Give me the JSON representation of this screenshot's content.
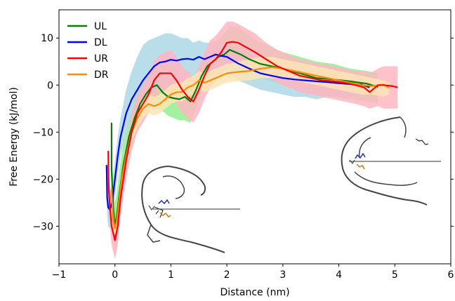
{
  "chart_data": {
    "type": "line",
    "title": "",
    "xlabel": "Distance (nm)",
    "ylabel": "Free Energy (kJ/mol)",
    "xlim": [
      -1,
      6
    ],
    "ylim": [
      -38,
      16
    ],
    "xticks": [
      "−1",
      "0",
      "1",
      "2",
      "3",
      "4",
      "5",
      "6"
    ],
    "yticks": [
      "−30",
      "−20",
      "−10",
      "0",
      "10"
    ],
    "grid": false,
    "legend_position": "top-left",
    "series": [
      {
        "name": "UL",
        "color": "#008000",
        "band_color": "#90ee90",
        "x": [
          -0.06,
          -0.06,
          -0.03,
          0.0,
          0.03,
          0.08,
          0.15,
          0.25,
          0.35,
          0.45,
          0.55,
          0.65,
          0.75,
          0.85,
          0.95,
          1.05,
          1.15,
          1.25,
          1.35,
          1.45,
          1.55,
          1.65,
          1.75,
          1.85,
          1.95,
          2.05,
          2.15,
          2.25,
          2.4,
          2.6,
          2.8,
          3.0,
          3.3,
          3.6,
          3.9,
          4.2,
          4.5,
          4.7
        ],
        "y": [
          -8,
          -18,
          -26,
          -30,
          -28,
          -23,
          -17,
          -11,
          -7,
          -4,
          -2,
          -0.5,
          0,
          -1.5,
          -2.5,
          -2.8,
          -3,
          -2.5,
          -3.5,
          -1,
          2,
          4,
          5,
          6,
          6.5,
          7.5,
          7,
          6.5,
          5.5,
          4.5,
          4,
          3.5,
          2.5,
          1.5,
          1.2,
          0.8,
          0.3,
          -0.4
        ],
        "band_upper": [
          -6,
          -14,
          -20,
          -25,
          -23,
          -18,
          -12,
          -7,
          -3,
          0,
          2,
          3,
          4,
          2,
          1,
          0.5,
          0,
          0,
          0,
          2,
          5,
          7,
          8.5,
          10,
          11,
          12.5,
          12.5,
          12,
          10.5,
          9,
          8,
          7,
          6,
          5,
          4.5,
          3.5,
          3,
          2.5
        ],
        "band_lower": [
          -12,
          -24,
          -31,
          -36,
          -34,
          -28,
          -21,
          -15,
          -11,
          -8,
          -6,
          -4,
          -5,
          -5.5,
          -6.5,
          -7,
          -7.5,
          -7.5,
          -8,
          -5,
          -1.5,
          1,
          2,
          3,
          3.5,
          4,
          3.5,
          3,
          2.5,
          1.5,
          0.8,
          0,
          -1,
          -2,
          -2.5,
          -3,
          -3.5,
          -4
        ]
      },
      {
        "name": "DL",
        "color": "#0000ff",
        "band_color": "#add8e6",
        "x": [
          -0.15,
          -0.14,
          -0.12,
          -0.09,
          -0.05,
          0.0,
          0.05,
          0.1,
          0.2,
          0.3,
          0.4,
          0.5,
          0.6,
          0.7,
          0.8,
          0.9,
          1.0,
          1.1,
          1.2,
          1.3,
          1.4,
          1.5,
          1.6,
          1.7,
          1.8,
          1.9,
          2.0,
          2.1,
          2.2,
          2.4,
          2.6,
          2.8,
          3.0,
          3.2,
          3.4,
          3.6,
          3.8,
          4.0,
          4.2,
          4.4,
          4.55
        ],
        "y": [
          -17,
          -24,
          -26,
          -26.5,
          -25,
          -20,
          -15,
          -11,
          -6,
          -3,
          -1,
          1,
          2.5,
          4,
          4.8,
          5,
          5.4,
          5.2,
          5.5,
          5.6,
          5.4,
          6,
          5.5,
          6,
          6.5,
          6.2,
          6,
          5.3,
          4.6,
          3.5,
          2.5,
          2,
          1.5,
          1.2,
          1,
          0.8,
          0.6,
          0.4,
          0.2,
          0.1,
          -0.5
        ],
        "band_upper": [
          -14,
          -20,
          -22,
          -23,
          -21,
          -16,
          -11,
          -7,
          -1,
          3,
          6,
          8.5,
          9.5,
          10,
          10.5,
          11,
          11,
          10.5,
          10,
          10,
          9,
          9.5,
          9,
          9,
          9.5,
          9.5,
          9,
          8.5,
          8,
          7,
          6,
          5.5,
          5,
          4.5,
          4,
          3.5,
          3,
          2.5,
          2,
          1.5,
          0.5
        ],
        "band_lower": [
          -20,
          -28,
          -30,
          -30.5,
          -29,
          -24,
          -19,
          -15,
          -10,
          -7,
          -5,
          -3,
          -2,
          -1,
          -0.5,
          -0.5,
          0,
          0,
          0.5,
          1,
          1,
          2,
          2,
          2.5,
          3,
          3,
          3,
          2,
          1,
          0,
          -1,
          -1.5,
          -2,
          -2.5,
          -2.5,
          -3,
          -2.5,
          -2.5,
          -2.5,
          -2,
          -1.5
        ]
      },
      {
        "name": "UR",
        "color": "#ff0000",
        "band_color": "#ffb6c1",
        "x": [
          -0.12,
          -0.11,
          -0.09,
          -0.06,
          -0.02,
          0.0,
          0.05,
          0.1,
          0.2,
          0.3,
          0.4,
          0.5,
          0.6,
          0.7,
          0.8,
          0.9,
          1.0,
          1.1,
          1.2,
          1.3,
          1.4,
          1.5,
          1.6,
          1.7,
          1.8,
          1.9,
          2.0,
          2.1,
          2.2,
          2.35,
          2.5,
          2.7,
          2.9,
          3.1,
          3.3,
          3.5,
          3.7,
          3.9,
          4.1,
          4.3,
          4.45,
          4.55,
          4.7,
          4.8,
          4.95,
          5.05
        ],
        "y": [
          -14,
          -22,
          -26,
          -30,
          -32,
          -33,
          -30,
          -24,
          -16,
          -10,
          -6,
          -4,
          -2,
          1,
          2.5,
          2.5,
          2.5,
          1,
          -1,
          -2.5,
          -3.5,
          -1,
          2,
          4.5,
          5.5,
          7,
          9,
          9.2,
          9,
          8,
          7,
          5.5,
          4,
          3,
          2,
          1.5,
          1,
          0.8,
          0.5,
          0,
          -0.5,
          -1.5,
          0,
          0,
          -0.2,
          -0.5
        ],
        "band_upper": [
          -11,
          -18,
          -22,
          -26,
          -28,
          -29,
          -26,
          -20,
          -12,
          -6,
          -2,
          0,
          2,
          5,
          6.5,
          7,
          7.5,
          6,
          4,
          3,
          1.5,
          4,
          7,
          9.5,
          10.5,
          12,
          13.5,
          13.5,
          13,
          12,
          11,
          9,
          7.5,
          6.5,
          5.5,
          5,
          4.5,
          4,
          3.5,
          3,
          3,
          2.5,
          3.5,
          4,
          4,
          4
        ],
        "band_lower": [
          -17,
          -26,
          -30,
          -34,
          -36,
          -37,
          -34,
          -28,
          -20,
          -14,
          -10,
          -8,
          -6,
          -3,
          -1.5,
          -2,
          -2.5,
          -4,
          -6,
          -7,
          -8,
          -6,
          -3,
          -0.5,
          1,
          2,
          4,
          4.5,
          4.5,
          4,
          3,
          2,
          0.5,
          -0.5,
          -1.5,
          -2,
          -2.5,
          -3,
          -3.5,
          -4,
          -4.5,
          -5,
          -4.5,
          -5,
          -5,
          -5
        ]
      },
      {
        "name": "DR",
        "color": "#ff8c00",
        "band_color": "#ffe4b5",
        "x": [
          -0.06,
          -0.04,
          -0.02,
          0.0,
          0.03,
          0.07,
          0.12,
          0.2,
          0.3,
          0.4,
          0.5,
          0.6,
          0.7,
          0.8,
          0.9,
          1.0,
          1.1,
          1.2,
          1.3,
          1.4,
          1.5,
          1.6,
          1.7,
          1.8,
          1.9,
          2.0,
          2.2,
          2.4,
          2.6,
          2.8,
          3.0,
          3.2,
          3.4,
          3.6,
          3.8,
          4.0,
          4.2,
          4.4,
          4.6,
          4.8,
          4.9
        ],
        "y": [
          -22,
          -27,
          -29.5,
          -30.5,
          -29,
          -25,
          -20,
          -15,
          -10,
          -7,
          -5,
          -4,
          -4.5,
          -4,
          -3,
          -2,
          -1.5,
          -1.5,
          -0.5,
          0,
          1,
          0.5,
          1,
          1.5,
          2,
          2.5,
          2.8,
          3,
          3.5,
          3.8,
          3.5,
          3,
          2.5,
          2,
          1.5,
          1,
          0.5,
          0,
          -0.2,
          0.1,
          -0.6
        ],
        "band_upper": [
          -20,
          -25,
          -27.5,
          -28.5,
          -27,
          -23,
          -18,
          -13,
          -8,
          -5,
          -3,
          -2,
          -2.5,
          -2,
          -1,
          0,
          0.5,
          0.5,
          1.5,
          2,
          3,
          2.5,
          3,
          3.5,
          4,
          4.5,
          5,
          5.5,
          6,
          6,
          5.5,
          5,
          4.5,
          4,
          3.5,
          3,
          2.5,
          2,
          1.5,
          1,
          0.5
        ],
        "band_lower": [
          -24,
          -29,
          -31.5,
          -32.5,
          -31,
          -27,
          -22,
          -17,
          -12,
          -9,
          -7,
          -6,
          -6.5,
          -6,
          -5,
          -4,
          -3.5,
          -3.5,
          -2.5,
          -2,
          -1,
          -1.5,
          -1,
          -0.5,
          0,
          0.5,
          0.8,
          1,
          1.5,
          1.5,
          1.5,
          1,
          0.5,
          0,
          -0.5,
          -1,
          -1.5,
          -2,
          -2,
          -2.5,
          -2
        ]
      }
    ]
  }
}
